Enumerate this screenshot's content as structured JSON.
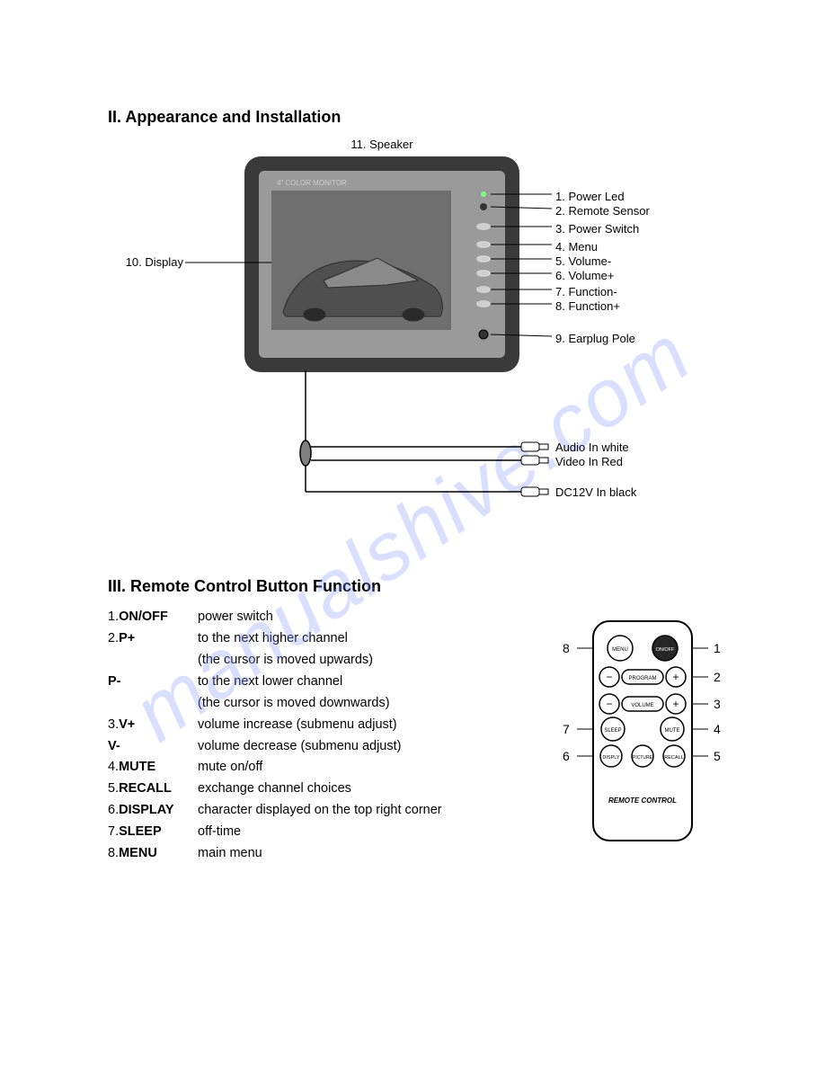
{
  "watermark": "manualshive.com",
  "section2": {
    "heading": "II. Appearance and Installation",
    "speaker_label": "11. Speaker",
    "display_label": "10. Display",
    "callouts_right": [
      "1. Power Led",
      "2. Remote Sensor",
      "3. Power Switch",
      "4. Menu",
      "5. Volume-",
      "6. Volume+",
      "7. Function-",
      "8. Function+"
    ],
    "callout_earplug": "9. Earplug Pole",
    "connectors": [
      "Audio In white",
      "Video In Red",
      "DC12V In black"
    ],
    "monitor": {
      "outer_color": "#3a3a3a",
      "inner_bg": "#9a9a9a",
      "screen_bg": "#7b7b7b",
      "screen_label": "4\" COLOR MONITOR",
      "button_fill": "#d0d0d0"
    }
  },
  "section3": {
    "heading": "III. Remote Control Button Function",
    "items": [
      {
        "num": "1.",
        "key": "ON/OFF",
        "desc": "power switch"
      },
      {
        "num": "2.",
        "key": "P+",
        "desc": "to the next higher channel\n(the cursor is moved upwards)"
      },
      {
        "num": "",
        "key": "P-",
        "desc": "to the next lower channel\n(the cursor is moved downwards)"
      },
      {
        "num": "3.",
        "key": "V+",
        "desc": "volume increase (submenu adjust)"
      },
      {
        "num": "",
        "key": "V-",
        "desc": "volume decrease (submenu adjust)"
      },
      {
        "num": "4.",
        "key": "MUTE",
        "desc": "mute on/off"
      },
      {
        "num": "5.",
        "key": "RECALL",
        "desc": "exchange channel choices"
      },
      {
        "num": "6.",
        "key": "DISPLAY",
        "desc": "character displayed on the top right corner"
      },
      {
        "num": "7.",
        "key": "SLEEP",
        "desc": "off-time"
      },
      {
        "num": "8.",
        "key": "MENU",
        "desc": "main menu"
      }
    ],
    "remote": {
      "label": "REMOTE CONTROL",
      "buttons": {
        "menu": "MENU",
        "onoff": "ON/OFF",
        "program": "PROGRAM",
        "volume": "VOLUME",
        "sleep": "SLEEP",
        "mute": "MUTE",
        "display": "DISPLY",
        "picture": "PICTURE",
        "recall": "RECALL"
      },
      "side_numbers_left": [
        "8",
        "7",
        "6"
      ],
      "side_numbers_right": [
        "1",
        "2",
        "3",
        "4",
        "5"
      ],
      "colors": {
        "outline": "#000000",
        "fill": "#ffffff",
        "onoff_fill": "#262626"
      }
    }
  }
}
